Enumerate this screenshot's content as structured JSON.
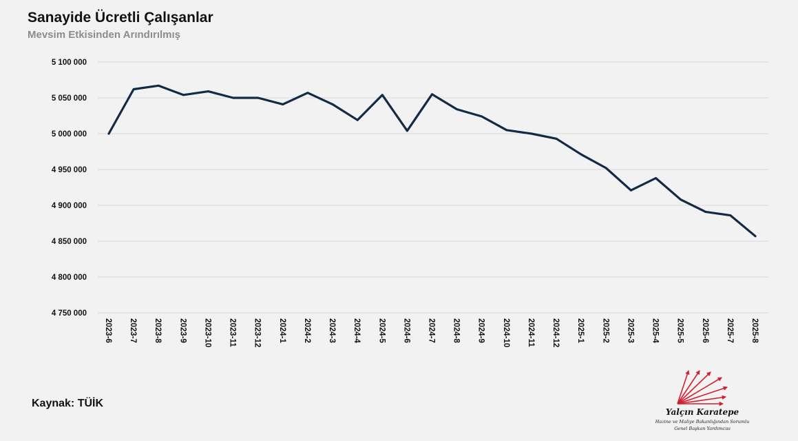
{
  "header": {
    "title": "Sanayide Ücretli Çalışanlar",
    "subtitle": "Mevsim Etkisinden Arındırılmış"
  },
  "footer": {
    "source": "Kaynak: TÜİK"
  },
  "signature": {
    "name": "Yalçın Karatepe",
    "line1": "Hazine ve Maliye Bakanlığından Sorumlu",
    "line2": "Genel Başkan Yardımcısı"
  },
  "colors": {
    "line": "#112a45",
    "grid": "#d9d9d9",
    "logo_arrows": "#d0202f"
  },
  "chart_data": {
    "type": "line",
    "title": "Sanayide Ücretli Çalışanlar",
    "subtitle": "Mevsim Etkisinden Arındırılmış",
    "xlabel": "",
    "ylabel": "",
    "ylim": [
      4750000,
      5100000
    ],
    "yticks": [
      4750000,
      4800000,
      4850000,
      4900000,
      4950000,
      5000000,
      5050000,
      5100000
    ],
    "ytick_labels": [
      "4 750 000",
      "4 800 000",
      "4 850 000",
      "4 900 000",
      "4 950 000",
      "5 000 000",
      "5 050 000",
      "5 100 000"
    ],
    "grid": true,
    "categories": [
      "2023-6",
      "2023-7",
      "2023-8",
      "2023-9",
      "2023-10",
      "2023-11",
      "2023-12",
      "2024-1",
      "2024-2",
      "2024-3",
      "2024-4",
      "2024-5",
      "2024-6",
      "2024-7",
      "2024-8",
      "2024-9",
      "2024-10",
      "2024-11",
      "2024-12",
      "2025-1",
      "2025-2",
      "2025-3",
      "2025-4",
      "2025-5",
      "2025-6",
      "2025-7",
      "2025-8"
    ],
    "series": [
      {
        "name": "Sanayide Ücretli Çalışanlar",
        "values": [
          5000000,
          5062000,
          5067000,
          5054000,
          5059000,
          5050000,
          5050000,
          5041000,
          5057000,
          5041000,
          5019000,
          5054000,
          5004000,
          5055000,
          5034000,
          5024000,
          5005000,
          5000000,
          4993000,
          4971000,
          4952000,
          4921000,
          4938000,
          4908000,
          4891000,
          4886000,
          4857000
        ]
      }
    ]
  }
}
